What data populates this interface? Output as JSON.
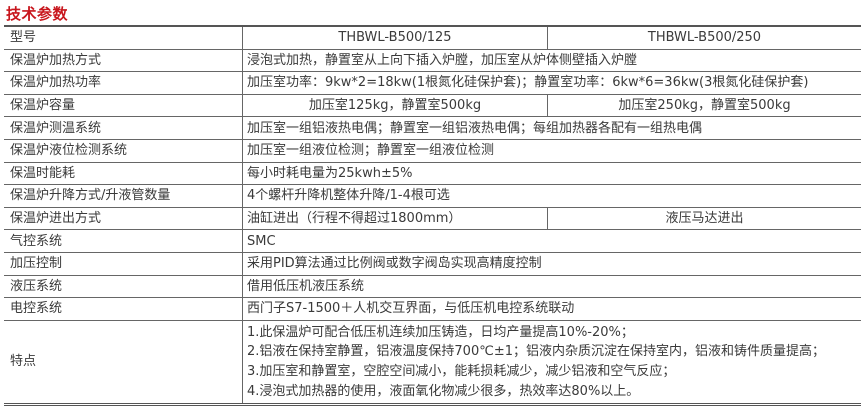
{
  "title": "技术参数",
  "header": {
    "label": "型号",
    "model_a": "THBWL-B500/125",
    "model_b": "THBWL-B500/250"
  },
  "rows": [
    {
      "label": "保温炉加热方式",
      "value": "浸泡式加热，静置室从上向下插入炉膛，加压室从炉体侧壁插入炉膛"
    },
    {
      "label": "保温炉加热功率",
      "value": "加压室功率：9kw*2=18kw(1根氮化硅保护套)；静置室功率：6kw*6=36kw(3根氮化硅保护套)"
    },
    {
      "label": "保温炉容量",
      "value_a": "加压室125kg，静置室500kg",
      "value_b": "加压室250kg，静置室500kg"
    },
    {
      "label": "保温炉测温系统",
      "value": "加压室一组铝液热电偶；静置室一组铝液热电偶；每组加热器各配有一组热电偶"
    },
    {
      "label": "保温炉液位检测系统",
      "value": "加压室一组液位检测；静置室一组液位检测"
    },
    {
      "label": "保温时能耗",
      "value": "每小时耗电量为25kwh±5%"
    },
    {
      "label": "保温炉升降方式/升液管数量",
      "value": "4个螺杆升降机整体升降/1-4根可选"
    },
    {
      "label": "保温炉进出方式",
      "value_a": "油缸进出（行程不得超过1800mm）",
      "value_b": "液压马达进出"
    },
    {
      "label": "气控系统",
      "value": "SMC"
    },
    {
      "label": "加压控制",
      "value": "采用PID算法通过比例阀或数字阀岛实现高精度控制"
    },
    {
      "label": "液压系统",
      "value": "借用低压机液压系统"
    },
    {
      "label": "电控系统",
      "value": "西门子S7-1500＋人机交互界面，与低压机电控系统联动"
    }
  ],
  "features": {
    "label": "特点",
    "items": [
      "1.此保温炉可配合低压机连续加压铸造，日均产量提高10%-20%；",
      "2.铝液在保持室静置，铝液温度保持700℃±1；铝液内杂质沉淀在保持室内，铝液和铸件质量提高；",
      "3.加压室和静置室，空腔空间减小，能耗损耗减少，减少铝液和空气反应；",
      "4.浸泡式加热器的使用，液面氧化物减少很多，热效率达80%以上。"
    ]
  },
  "colors": {
    "title": "#c8161d",
    "text": "#3a3a3a",
    "border": "#666666"
  }
}
